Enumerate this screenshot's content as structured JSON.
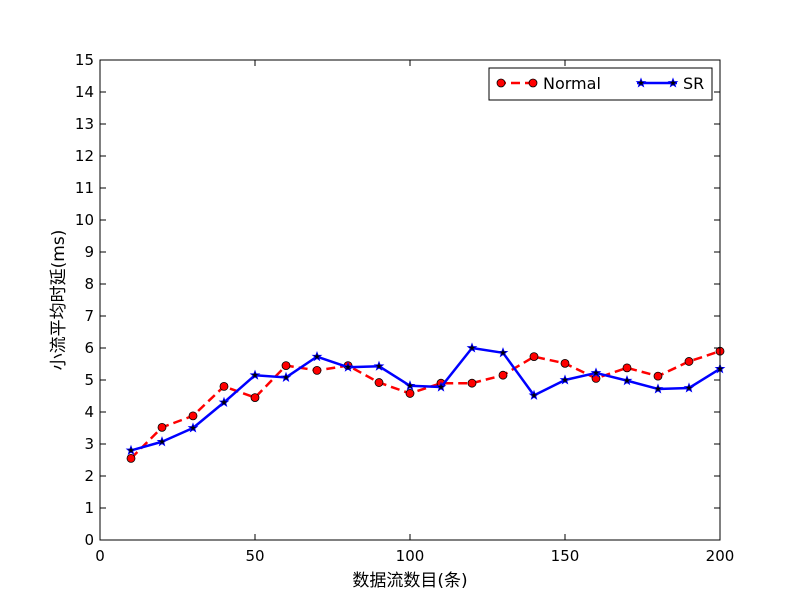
{
  "chart_data": {
    "type": "line",
    "xlabel": "数据流数目(条)",
    "ylabel": "小流平均时延(ms)",
    "xlim": [
      0,
      200
    ],
    "ylim": [
      0,
      15
    ],
    "xticks": [
      0,
      50,
      100,
      150,
      200
    ],
    "yticks": [
      0,
      1,
      2,
      3,
      4,
      5,
      6,
      7,
      8,
      9,
      10,
      11,
      12,
      13,
      14,
      15
    ],
    "grid": false,
    "legend_position": "top-right",
    "x": [
      10,
      20,
      30,
      40,
      50,
      60,
      70,
      80,
      90,
      100,
      110,
      120,
      130,
      140,
      150,
      160,
      170,
      180,
      190,
      200
    ],
    "series": [
      {
        "name": "Normal",
        "color": "#ff0000",
        "line_style": "dashed",
        "marker": "circle",
        "values": [
          2.55,
          3.52,
          3.88,
          4.8,
          4.45,
          5.45,
          5.3,
          5.45,
          4.92,
          4.58,
          4.9,
          4.9,
          5.15,
          5.73,
          5.52,
          5.05,
          5.38,
          5.12,
          5.58,
          5.9
        ]
      },
      {
        "name": "SR",
        "color": "#0000ff",
        "line_style": "solid",
        "marker": "star",
        "values": [
          2.8,
          3.07,
          3.5,
          4.3,
          5.15,
          5.08,
          5.73,
          5.4,
          5.43,
          4.82,
          4.78,
          6.0,
          5.85,
          4.52,
          5.0,
          5.22,
          4.98,
          4.72,
          4.75,
          5.35
        ]
      }
    ]
  }
}
